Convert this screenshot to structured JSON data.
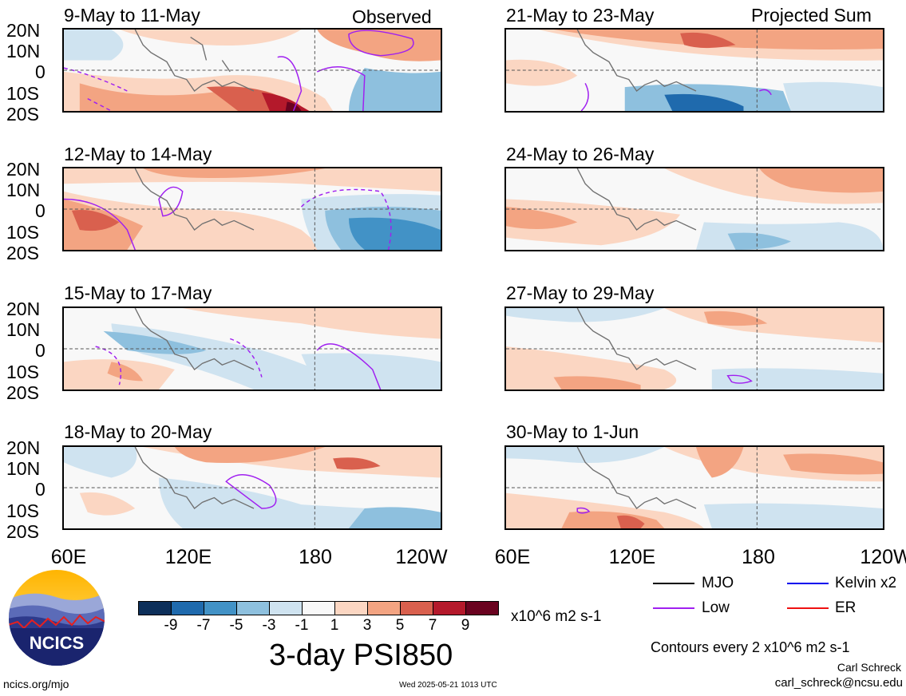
{
  "panels": [
    {
      "id": "p1",
      "title": "9-May to 11-May",
      "label": "Observed"
    },
    {
      "id": "p2",
      "title": "12-May to 14-May",
      "label": ""
    },
    {
      "id": "p3",
      "title": "15-May to 17-May",
      "label": ""
    },
    {
      "id": "p4",
      "title": "18-May to 20-May",
      "label": ""
    },
    {
      "id": "p5",
      "title": "21-May to 23-May",
      "label": "Projected Sum"
    },
    {
      "id": "p6",
      "title": "24-May to 26-May",
      "label": ""
    },
    {
      "id": "p7",
      "title": "27-May to 29-May",
      "label": ""
    },
    {
      "id": "p8",
      "title": "30-May to 1-Jun",
      "label": ""
    }
  ],
  "latitude_ticks": [
    "20N",
    "10N",
    "0",
    "10S",
    "20S"
  ],
  "longitude_ticks": [
    "60E",
    "120E",
    "180",
    "120W"
  ],
  "colorbar": {
    "tick_labels": [
      "-9",
      "-7",
      "-5",
      "-3",
      "-1",
      "1",
      "3",
      "5",
      "7",
      "9"
    ],
    "colors": [
      "#0d2f5a",
      "#1f6aad",
      "#4292c6",
      "#8ec0de",
      "#cfe3f0",
      "#f8f8f8",
      "#fbd6c2",
      "#f3a482",
      "#d9604e",
      "#b4192b",
      "#6a0320"
    ],
    "units": "x10^6 m2 s-1"
  },
  "main_title": "3-day PSI850",
  "legend": {
    "items": [
      {
        "label": "MJO",
        "color": "#000000"
      },
      {
        "label": "Kelvin x2",
        "color": "#0000ee"
      },
      {
        "label": "Low",
        "color": "#a020f0"
      },
      {
        "label": "ER",
        "color": "#ee1111"
      }
    ],
    "contours_note": "Contours every 2 x10^6 m2 s-1"
  },
  "credits": {
    "author": "Carl Schreck",
    "email": "carl_schreck@ncsu.edu",
    "website": "ncics.org/mjo",
    "timestamp": "Wed 2025-05-21 1013 UTC",
    "logo_text": "NCICS"
  }
}
